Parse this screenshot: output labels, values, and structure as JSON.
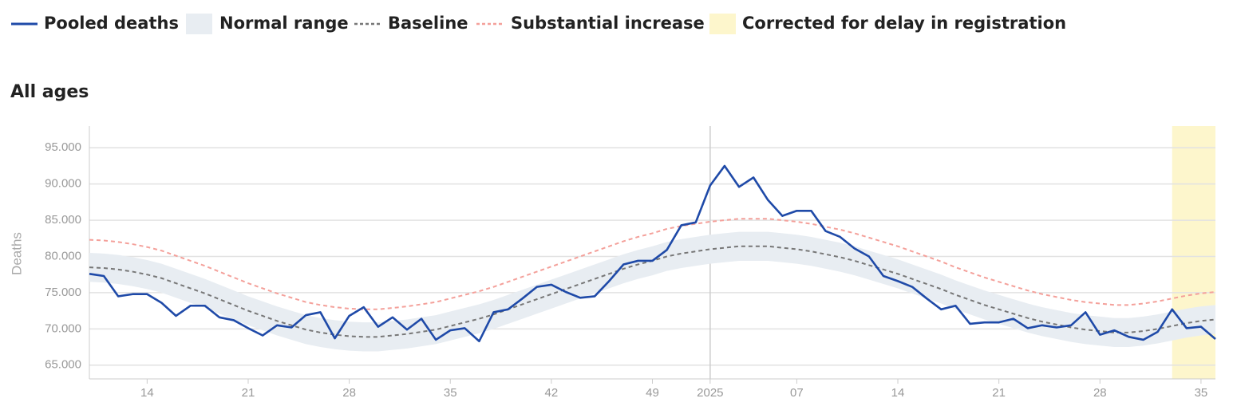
{
  "chart_data": {
    "type": "line",
    "title": "All ages",
    "y_label": "Deaths",
    "categories": [
      null,
      null,
      null,
      null,
      "14",
      null,
      null,
      null,
      null,
      null,
      null,
      "21",
      null,
      null,
      null,
      null,
      null,
      null,
      "28",
      null,
      null,
      null,
      null,
      null,
      null,
      "35",
      null,
      null,
      null,
      null,
      null,
      null,
      "42",
      null,
      null,
      null,
      null,
      null,
      null,
      "49",
      null,
      null,
      null,
      "2025",
      null,
      null,
      null,
      null,
      null,
      "07",
      null,
      null,
      null,
      null,
      null,
      null,
      "14",
      null,
      null,
      null,
      null,
      null,
      null,
      "21",
      null,
      null,
      null,
      null,
      null,
      null,
      "28",
      null,
      null,
      null,
      null,
      null,
      null,
      "35",
      null
    ],
    "divider_index": 43,
    "ylim": [
      63100,
      98000
    ],
    "yticks": [
      {
        "value": 65000,
        "label": "65.000"
      },
      {
        "value": 70000,
        "label": "70.000"
      },
      {
        "value": 75000,
        "label": "75.000"
      },
      {
        "value": 80000,
        "label": "80.000"
      },
      {
        "value": 85000,
        "label": "85.000"
      },
      {
        "value": 90000,
        "label": "90.000"
      },
      {
        "value": 95000,
        "label": "95.000"
      }
    ],
    "grid": true,
    "series": [
      {
        "name": "Pooled deaths",
        "color": "#1f4aa8",
        "dash": false,
        "values": [
          77600,
          77300,
          74500,
          74800,
          74800,
          73600,
          71800,
          73200,
          73200,
          71600,
          71200,
          70100,
          69100,
          70500,
          70200,
          71900,
          72300,
          68700,
          71800,
          73000,
          70300,
          71600,
          69900,
          71400,
          68500,
          69800,
          70100,
          68300,
          72300,
          72700,
          74200,
          75800,
          76100,
          75100,
          74300,
          74500,
          76600,
          78900,
          79400,
          79400,
          80900,
          84300,
          84700,
          89800,
          92500,
          89600,
          90900,
          87800,
          85600,
          86300,
          86300,
          83500,
          82700,
          81100,
          80000,
          77300,
          76600,
          75800,
          74200,
          72700,
          73200,
          70700,
          70900,
          70900,
          71400,
          70100,
          70500,
          70200,
          70500,
          72300,
          69200,
          69800,
          68900,
          68500,
          69600,
          72700,
          70100,
          70300,
          68600
        ]
      },
      {
        "name": "Baseline",
        "color": "#777777",
        "dash": true,
        "values": [
          78500,
          78400,
          78200,
          77900,
          77500,
          77000,
          76300,
          75600,
          74900,
          74100,
          73300,
          72500,
          71800,
          71100,
          70500,
          69900,
          69500,
          69200,
          69000,
          68900,
          68900,
          69100,
          69300,
          69600,
          69900,
          70400,
          70900,
          71400,
          72000,
          72700,
          73400,
          74100,
          74800,
          75500,
          76200,
          76900,
          77600,
          78300,
          78900,
          79400,
          80000,
          80400,
          80700,
          81000,
          81200,
          81400,
          81400,
          81400,
          81200,
          81000,
          80700,
          80300,
          79900,
          79400,
          78800,
          78200,
          77600,
          76900,
          76200,
          75500,
          74700,
          74000,
          73300,
          72700,
          72100,
          71500,
          71000,
          70600,
          70200,
          69900,
          69700,
          69500,
          69500,
          69700,
          70000,
          70400,
          70800,
          71100,
          71300
        ]
      },
      {
        "name": "Substantial increase",
        "color": "#f4a09a",
        "dash": true,
        "values": [
          82300,
          82200,
          82000,
          81700,
          81300,
          80800,
          80100,
          79400,
          78700,
          77900,
          77100,
          76300,
          75600,
          74900,
          74300,
          73700,
          73300,
          73000,
          72800,
          72700,
          72700,
          72900,
          73100,
          73400,
          73700,
          74200,
          74700,
          75200,
          75800,
          76500,
          77200,
          77900,
          78600,
          79300,
          80000,
          80700,
          81400,
          82100,
          82700,
          83200,
          83800,
          84200,
          84500,
          84800,
          85000,
          85200,
          85200,
          85200,
          85000,
          84800,
          84500,
          84100,
          83700,
          83200,
          82600,
          82000,
          81400,
          80700,
          80000,
          79300,
          78500,
          77800,
          77100,
          76500,
          75900,
          75300,
          74800,
          74400,
          74000,
          73700,
          73500,
          73300,
          73300,
          73500,
          73800,
          74200,
          74600,
          74900,
          75100
        ]
      }
    ],
    "normal_range": {
      "name": "Normal range",
      "color": "#e8edf2",
      "lower": [
        76500,
        76400,
        76200,
        75900,
        75500,
        75000,
        74300,
        73600,
        72900,
        72100,
        71300,
        70500,
        69800,
        69100,
        68500,
        67900,
        67500,
        67200,
        67000,
        66900,
        66900,
        67100,
        67300,
        67600,
        67900,
        68400,
        68900,
        69400,
        70000,
        70700,
        71400,
        72100,
        72800,
        73500,
        74200,
        74900,
        75600,
        76300,
        76900,
        77400,
        78000,
        78400,
        78700,
        79000,
        79200,
        79400,
        79400,
        79400,
        79200,
        79000,
        78700,
        78300,
        77900,
        77400,
        76800,
        76200,
        75600,
        74900,
        74200,
        73500,
        72700,
        72000,
        71300,
        70700,
        70100,
        69500,
        69000,
        68600,
        68200,
        67900,
        67700,
        67500,
        67500,
        67700,
        68000,
        68400,
        68800,
        69100,
        69300
      ],
      "upper": [
        80500,
        80400,
        80200,
        79900,
        79500,
        79000,
        78300,
        77600,
        76900,
        76100,
        75300,
        74500,
        73800,
        73100,
        72500,
        71900,
        71500,
        71200,
        71000,
        70900,
        70900,
        71100,
        71300,
        71600,
        71900,
        72400,
        72900,
        73400,
        74000,
        74700,
        75400,
        76100,
        76800,
        77500,
        78200,
        78900,
        79600,
        80300,
        80900,
        81400,
        82000,
        82400,
        82700,
        83000,
        83200,
        83400,
        83400,
        83400,
        83200,
        83000,
        82700,
        82300,
        81900,
        81400,
        80800,
        80200,
        79600,
        78900,
        78200,
        77500,
        76700,
        76000,
        75300,
        74700,
        74100,
        73500,
        73000,
        72600,
        72200,
        71900,
        71700,
        71500,
        71500,
        71700,
        72000,
        72400,
        72800,
        73100,
        73300
      ]
    },
    "delay_correction": {
      "name": "Corrected for delay in registration",
      "color": "#fdf6cc",
      "from_index": 75
    }
  }
}
